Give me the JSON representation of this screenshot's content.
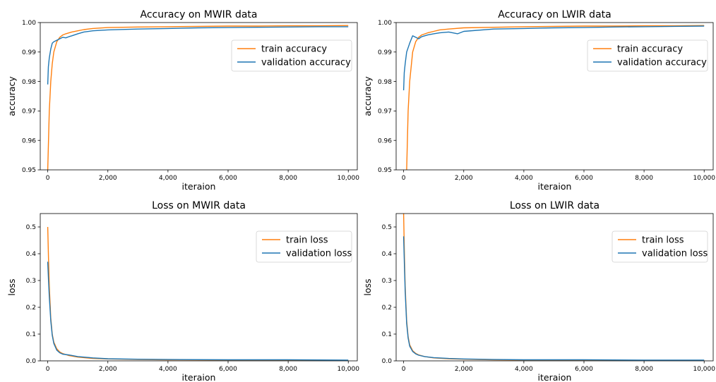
{
  "colors": {
    "train": "#ff7f0e",
    "validation": "#1f77b4"
  },
  "chart_data": [
    {
      "type": "line",
      "title": "Accuracy on MWIR data",
      "xlabel": "iteraion",
      "ylabel": "accuracy",
      "xlim": [
        -250,
        10300
      ],
      "ylim": [
        0.95,
        1.0
      ],
      "xticks": [
        0,
        2000,
        4000,
        6000,
        8000,
        10000
      ],
      "xtick_labels": [
        "0",
        "2,000",
        "4,000",
        "6,000",
        "8,000",
        "10,000"
      ],
      "yticks": [
        0.95,
        0.96,
        0.97,
        0.98,
        0.99,
        1.0
      ],
      "ytick_labels": [
        "0.95",
        "0.96",
        "0.97",
        "0.98",
        "0.99",
        "1.00"
      ],
      "legend": "upper-right",
      "series": [
        {
          "name": "train accuracy",
          "color": "#ff7f0e",
          "x": [
            0,
            50,
            100,
            150,
            200,
            300,
            400,
            500,
            600,
            800,
            1000,
            1200,
            1500,
            2000,
            3000,
            4000,
            5000,
            6000,
            7000,
            8000,
            9000,
            10000
          ],
          "y": [
            0.95,
            0.97,
            0.98,
            0.986,
            0.99,
            0.9935,
            0.995,
            0.9958,
            0.9962,
            0.9968,
            0.9972,
            0.9976,
            0.998,
            0.9983,
            0.9985,
            0.9986,
            0.9987,
            0.9988,
            0.9988,
            0.9989,
            0.9989,
            0.999
          ]
        },
        {
          "name": "validation accuracy",
          "color": "#1f77b4",
          "x": [
            0,
            20,
            50,
            100,
            150,
            200,
            300,
            400,
            500,
            600,
            700,
            800,
            1000,
            1200,
            1500,
            2000,
            3000,
            4000,
            5000,
            6000,
            7000,
            8000,
            9000,
            10000
          ],
          "y": [
            0.979,
            0.985,
            0.988,
            0.991,
            0.993,
            0.9935,
            0.994,
            0.9945,
            0.995,
            0.9948,
            0.9952,
            0.9955,
            0.9962,
            0.9968,
            0.9972,
            0.9975,
            0.9978,
            0.998,
            0.9982,
            0.9983,
            0.9984,
            0.9985,
            0.9986,
            0.9986
          ]
        }
      ]
    },
    {
      "type": "line",
      "title": "Accuracy on LWIR data",
      "xlabel": "iteraion",
      "ylabel": "accuracy",
      "xlim": [
        -250,
        10300
      ],
      "ylim": [
        0.95,
        1.0
      ],
      "xticks": [
        0,
        2000,
        4000,
        6000,
        8000,
        10000
      ],
      "xtick_labels": [
        "0",
        "2,000",
        "4,000",
        "6,000",
        "8,000",
        "10,000"
      ],
      "yticks": [
        0.95,
        0.96,
        0.97,
        0.98,
        0.99,
        1.0
      ],
      "ytick_labels": [
        "0.95",
        "0.96",
        "0.97",
        "0.98",
        "0.99",
        "1.00"
      ],
      "legend": "upper-right",
      "series": [
        {
          "name": "train accuracy",
          "color": "#ff7f0e",
          "x": [
            100,
            150,
            200,
            300,
            400,
            500,
            600,
            800,
            1000,
            1200,
            1500,
            2000,
            3000,
            4000,
            5000,
            6000,
            7000,
            8000,
            9000,
            10000
          ],
          "y": [
            0.95,
            0.97,
            0.98,
            0.99,
            0.9935,
            0.995,
            0.9958,
            0.9965,
            0.997,
            0.9975,
            0.9978,
            0.9982,
            0.9984,
            0.9986,
            0.9987,
            0.9988,
            0.9988,
            0.9989,
            0.9989,
            0.999
          ]
        },
        {
          "name": "validation accuracy",
          "color": "#1f77b4",
          "x": [
            0,
            20,
            50,
            100,
            200,
            300,
            400,
            500,
            600,
            700,
            800,
            1000,
            1200,
            1500,
            1800,
            2000,
            3000,
            4000,
            5000,
            6000,
            7000,
            8000,
            9000,
            10000
          ],
          "y": [
            0.977,
            0.983,
            0.986,
            0.99,
            0.993,
            0.9955,
            0.995,
            0.9945,
            0.9952,
            0.9955,
            0.9958,
            0.9962,
            0.9965,
            0.9968,
            0.9962,
            0.997,
            0.9978,
            0.998,
            0.9982,
            0.9983,
            0.9985,
            0.9986,
            0.9987,
            0.9988
          ]
        }
      ]
    },
    {
      "type": "line",
      "title": "Loss on MWIR data",
      "xlabel": "iteraion",
      "ylabel": "loss",
      "xlim": [
        -250,
        10300
      ],
      "ylim": [
        0,
        0.55
      ],
      "xticks": [
        0,
        2000,
        4000,
        6000,
        8000,
        10000
      ],
      "xtick_labels": [
        "0",
        "2,000",
        "4,000",
        "6,000",
        "8,000",
        "10,000"
      ],
      "yticks": [
        0,
        0.1,
        0.2,
        0.3,
        0.4,
        0.5
      ],
      "ytick_labels": [
        "0.0",
        "0.1",
        "0.2",
        "0.3",
        "0.4",
        "0.5"
      ],
      "legend": "upper-right",
      "series": [
        {
          "name": "train loss",
          "color": "#ff7f0e",
          "x": [
            0,
            25,
            50,
            100,
            150,
            200,
            300,
            400,
            500,
            700,
            1000,
            1500,
            2000,
            3000,
            4000,
            6000,
            8000,
            10000
          ],
          "y": [
            0.5,
            0.38,
            0.28,
            0.16,
            0.1,
            0.07,
            0.045,
            0.033,
            0.027,
            0.02,
            0.014,
            0.009,
            0.007,
            0.005,
            0.004,
            0.003,
            0.002,
            0.002
          ]
        },
        {
          "name": "validation loss",
          "color": "#1f77b4",
          "x": [
            0,
            25,
            50,
            100,
            150,
            200,
            300,
            400,
            500,
            700,
            1000,
            1500,
            2000,
            3000,
            4000,
            6000,
            8000,
            10000
          ],
          "y": [
            0.37,
            0.3,
            0.24,
            0.15,
            0.095,
            0.065,
            0.04,
            0.03,
            0.025,
            0.022,
            0.016,
            0.011,
            0.008,
            0.006,
            0.005,
            0.004,
            0.004,
            0.003
          ]
        }
      ]
    },
    {
      "type": "line",
      "title": "Loss on LWIR data",
      "xlabel": "iteraion",
      "ylabel": "loss",
      "xlim": [
        -250,
        10300
      ],
      "ylim": [
        0,
        0.55
      ],
      "xticks": [
        0,
        2000,
        4000,
        6000,
        8000,
        10000
      ],
      "xtick_labels": [
        "0",
        "2,000",
        "4,000",
        "6,000",
        "8,000",
        "10,000"
      ],
      "yticks": [
        0,
        0.1,
        0.2,
        0.3,
        0.4,
        0.5
      ],
      "ytick_labels": [
        "0.0",
        "0.1",
        "0.2",
        "0.3",
        "0.4",
        "0.5"
      ],
      "legend": "upper-right",
      "series": [
        {
          "name": "train loss",
          "color": "#ff7f0e",
          "x": [
            0,
            25,
            50,
            100,
            150,
            200,
            300,
            400,
            500,
            700,
            1000,
            1500,
            2000,
            3000,
            4000,
            6000,
            8000,
            10000
          ],
          "y": [
            0.55,
            0.4,
            0.28,
            0.15,
            0.09,
            0.06,
            0.038,
            0.028,
            0.022,
            0.016,
            0.011,
            0.008,
            0.006,
            0.004,
            0.003,
            0.002,
            0.002,
            0.002
          ]
        },
        {
          "name": "validation loss",
          "color": "#1f77b4",
          "x": [
            0,
            25,
            50,
            100,
            150,
            200,
            300,
            400,
            500,
            700,
            1000,
            1500,
            2000,
            3000,
            4000,
            6000,
            8000,
            10000
          ],
          "y": [
            0.465,
            0.36,
            0.26,
            0.14,
            0.085,
            0.055,
            0.035,
            0.026,
            0.021,
            0.016,
            0.012,
            0.009,
            0.007,
            0.005,
            0.004,
            0.004,
            0.003,
            0.003
          ]
        }
      ]
    }
  ]
}
